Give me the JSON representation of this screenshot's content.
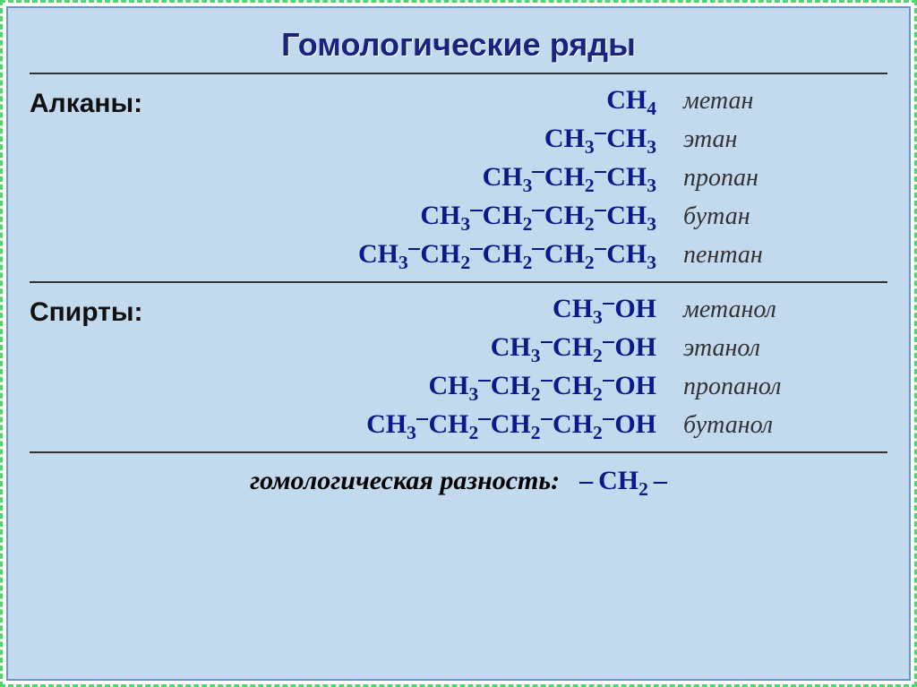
{
  "title": "Гомологические ряды",
  "title_fontsize": 36,
  "colors": {
    "border_dash": "#4fd66b",
    "panel_bg": "#c2d9ee",
    "panel_border": "#6a98cc",
    "formula": "#0b1a8a",
    "text": "#333333",
    "rule": "#333333"
  },
  "fontsize": {
    "label": 30,
    "formula": 30,
    "name": 28,
    "footer": 30
  },
  "alkanes": {
    "label": "Алканы:",
    "items": [
      {
        "formula_html": "CH<sub>4</sub>",
        "name": "метан"
      },
      {
        "formula_html": "CH<sub>3</sub><span class='bondtop'></span>CH<sub>3</sub>",
        "name": "этан"
      },
      {
        "formula_html": "CH<sub>3</sub><span class='bondtop'></span>CH<sub>2</sub><span class='bondtop'></span>CH<sub>3</sub>",
        "name": "пропан"
      },
      {
        "formula_html": "CH<sub>3</sub><span class='bondtop'></span>CH<sub>2</sub><span class='bondtop'></span>CH<sub>2</sub><span class='bondtop'></span>CH<sub>3</sub>",
        "name": "бутан"
      },
      {
        "formula_html": "CH<sub>3</sub><span class='bondtop'></span>CH<sub>2</sub><span class='bondtop'></span>CH<sub>2</sub><span class='bondtop'></span>CH<sub>2</sub><span class='bondtop'></span>CH<sub>3</sub>",
        "name": "пентан"
      }
    ]
  },
  "alcohols": {
    "label": "Спирты:",
    "items": [
      {
        "formula_html": "CH<sub>3</sub><span class='bondtop'></span>OH",
        "name": "метанол"
      },
      {
        "formula_html": "CH<sub>3</sub><span class='bondtop'></span>CH<sub>2</sub><span class='bondtop'></span>OH",
        "name": "этанол"
      },
      {
        "formula_html": "CH<sub>3</sub><span class='bondtop'></span>CH<sub>2</sub><span class='bondtop'></span>CH<sub>2</sub><span class='bondtop'></span>OH",
        "name": "пропанол"
      },
      {
        "formula_html": "CH<sub>3</sub><span class='bondtop'></span>CH<sub>2</sub><span class='bondtop'></span>CH<sub>2</sub><span class='bondtop'></span>CH<sub>2</sub><span class='bondtop'></span>OH",
        "name": "бутанол"
      }
    ]
  },
  "footer": {
    "label": "гомологическая разность:",
    "formula_html": "&ndash;&thinsp;CH<sub>2</sub>&thinsp;&ndash;"
  }
}
